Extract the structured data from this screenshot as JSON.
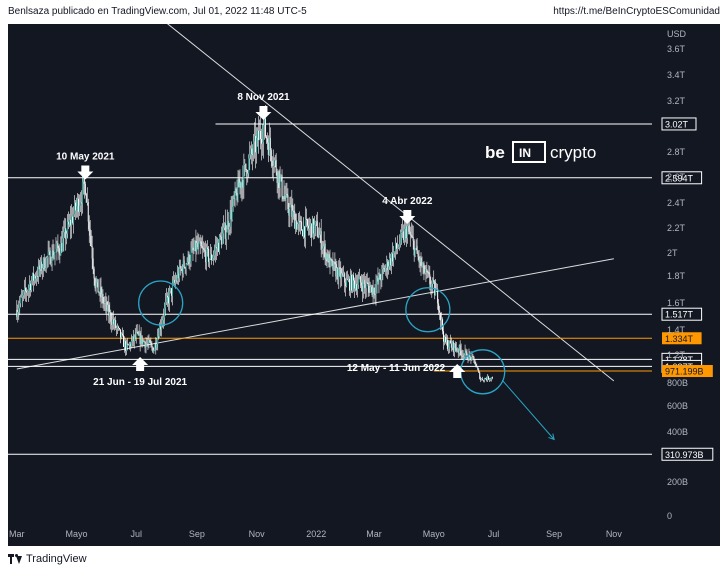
{
  "header": {
    "publisher": "Benlsaza publicado en TradingView.com, Jul 01, 2022 11:48 UTC-5",
    "link": "https://t.me/BeInCryptoESComunidad"
  },
  "footer": {
    "brand": "TradingView"
  },
  "watermark": {
    "prefix": "be",
    "middle": "IN",
    "suffix": "crypto"
  },
  "colors": {
    "background": "#131722",
    "candle": "#26a69a",
    "wick": "#ffffff",
    "level_line": "#ffffff",
    "highlight_level": "#ff9800",
    "circle": "#2ba4c4",
    "arrow": "#2ba4c4"
  },
  "chart_data": {
    "type": "line",
    "symbol": "",
    "currency": "USD",
    "y_scale": "log",
    "ylim": [
      0,
      3.8
    ],
    "y_unit": "trillion",
    "y_ticks": [
      {
        "label": "3.6T",
        "value": 3.6
      },
      {
        "label": "3.4T",
        "value": 3.4
      },
      {
        "label": "3.2T",
        "value": 3.2
      },
      {
        "label": "2.8T",
        "value": 2.8
      },
      {
        "label": "2.6T",
        "value": 2.6
      },
      {
        "label": "2.4T",
        "value": 2.4
      },
      {
        "label": "2.2T",
        "value": 2.2
      },
      {
        "label": "2T",
        "value": 2.0
      },
      {
        "label": "1.8T",
        "value": 1.8
      },
      {
        "label": "1.6T",
        "value": 1.6
      },
      {
        "label": "1.4T",
        "value": 1.4
      },
      {
        "label": "1.2T",
        "value": 1.2
      },
      {
        "label": "800B",
        "value": 0.8
      },
      {
        "label": "600B",
        "value": 0.6
      },
      {
        "label": "400B",
        "value": 0.4
      },
      {
        "label": "200B",
        "value": 0.2
      },
      {
        "label": "0",
        "value": 0
      }
    ],
    "x_ticks": [
      "Mar",
      "Mayo",
      "Jul",
      "Sep",
      "Nov",
      "2022",
      "Mar",
      "Mayo",
      "Jul",
      "Sep",
      "Nov"
    ],
    "series": [
      {
        "x": [
          "2021-03-01",
          "2021-03-15",
          "2021-04-01",
          "2021-04-15",
          "2021-05-10",
          "2021-05-20",
          "2021-06-01",
          "2021-06-15",
          "2021-06-21",
          "2021-07-01",
          "2021-07-19",
          "2021-08-01",
          "2021-08-15",
          "2021-09-01",
          "2021-09-15",
          "2021-10-01",
          "2021-10-15",
          "2021-11-08",
          "2021-11-20",
          "2021-12-01",
          "2021-12-15",
          "2022-01-01",
          "2022-01-15",
          "2022-02-01",
          "2022-02-15",
          "2022-03-01",
          "2022-03-15",
          "2022-04-04",
          "2022-04-20",
          "2022-05-05",
          "2022-05-12",
          "2022-05-25",
          "2022-06-11",
          "2022-06-18",
          "2022-06-30"
        ],
        "values": [
          1.55,
          1.75,
          1.95,
          2.05,
          2.55,
          1.75,
          1.55,
          1.35,
          1.25,
          1.35,
          1.25,
          1.6,
          1.85,
          2.05,
          1.95,
          2.2,
          2.55,
          3.0,
          2.7,
          2.4,
          2.2,
          2.2,
          1.9,
          1.75,
          1.75,
          1.7,
          1.9,
          2.2,
          1.85,
          1.65,
          1.3,
          1.25,
          1.13,
          0.85,
          0.88
        ]
      }
    ],
    "levels": [
      {
        "label": "3.02T",
        "value": 3.02,
        "highlight": false
      },
      {
        "label": "2.594T",
        "value": 2.594,
        "highlight": false
      },
      {
        "label": "1.517T",
        "value": 1.517,
        "highlight": false
      },
      {
        "label": "1.334T",
        "value": 1.334,
        "highlight": true
      },
      {
        "label": "1.138T",
        "value": 1.138,
        "highlight": false
      },
      {
        "label": "1.037T",
        "value": 1.037,
        "highlight": false
      },
      {
        "label": "971.199B",
        "value": 0.971199,
        "highlight": true
      },
      {
        "label": "310.973B",
        "value": 0.310973,
        "highlight": false
      }
    ],
    "annotations": [
      {
        "text": "10 May 2021",
        "x": "2021-05-10",
        "value": 2.55,
        "arrow": "down"
      },
      {
        "text": "8 Nov 2021",
        "x": "2021-11-08",
        "value": 3.02,
        "arrow": "down"
      },
      {
        "text": "4 Abr 2022",
        "x": "2022-04-04",
        "value": 2.2,
        "arrow": "down"
      },
      {
        "text": "21 Jun - 19 Jul 2021",
        "x": "2021-07-05",
        "value": 1.2,
        "arrow": "up"
      },
      {
        "text": "12 May - 11 Jun 2022",
        "x": "2022-05-25",
        "value": 1.1,
        "arrow": "up"
      }
    ],
    "trendlines": [
      {
        "from": {
          "x": "2021-08-01",
          "value": 3.8
        },
        "to": {
          "x": "2022-11-01",
          "value": 0.83
        }
      },
      {
        "from": {
          "x": "2021-03-01",
          "value": 1.0
        },
        "to": {
          "x": "2022-11-01",
          "value": 1.95
        }
      }
    ],
    "circles": [
      {
        "x": "2021-07-26",
        "value": 1.6
      },
      {
        "x": "2022-04-25",
        "value": 1.55
      },
      {
        "x": "2022-06-20",
        "value": 0.96
      }
    ],
    "projection": {
      "from": {
        "x": "2022-07-10",
        "value": 0.84
      },
      "to": {
        "x": "2022-09-01",
        "value": 0.37
      }
    }
  }
}
